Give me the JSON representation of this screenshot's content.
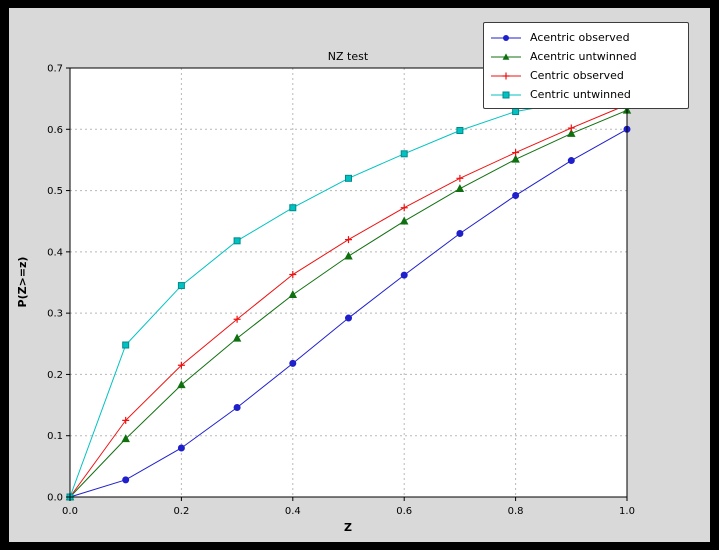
{
  "window": {
    "outer_bg": "#000000",
    "figure_bg": "#d9d9d9",
    "plot_bg": "#ffffff",
    "grid_color": "#b8b8b8"
  },
  "chart_data": {
    "type": "line",
    "title": "NZ test",
    "xlabel": "Z",
    "ylabel": "P(Z>=z)",
    "xlim": [
      0.0,
      1.0
    ],
    "ylim": [
      0.0,
      0.7
    ],
    "xticks": [
      0.0,
      0.2,
      0.4,
      0.6,
      0.8,
      1.0
    ],
    "yticks": [
      0.0,
      0.1,
      0.2,
      0.3,
      0.4,
      0.5,
      0.6,
      0.7
    ],
    "grid": true,
    "legend_position": "top-right",
    "x": [
      0.0,
      0.1,
      0.2,
      0.3,
      0.4,
      0.5,
      0.6,
      0.7,
      0.8,
      0.9,
      1.0
    ],
    "series": [
      {
        "name": "Acentric observed",
        "color": "#1f1fcc",
        "marker": "circle",
        "values": [
          0.0,
          0.028,
          0.08,
          0.146,
          0.218,
          0.292,
          0.362,
          0.43,
          0.492,
          0.549,
          0.6
        ]
      },
      {
        "name": "Acentric untwinned",
        "color": "#107010",
        "marker": "triangle",
        "values": [
          0.0,
          0.095,
          0.183,
          0.259,
          0.33,
          0.393,
          0.45,
          0.503,
          0.551,
          0.593,
          0.631
        ]
      },
      {
        "name": "Centric observed",
        "color": "#ee1111",
        "marker": "plus",
        "values": [
          0.0,
          0.125,
          0.215,
          0.29,
          0.363,
          0.42,
          0.472,
          0.52,
          0.562,
          0.602,
          0.64
        ]
      },
      {
        "name": "Centric untwinned",
        "color": "#00c2c2",
        "marker": "square",
        "values": [
          0.0,
          0.248,
          0.345,
          0.418,
          0.472,
          0.52,
          0.56,
          0.598,
          0.629,
          0.645,
          0.658
        ]
      }
    ]
  }
}
